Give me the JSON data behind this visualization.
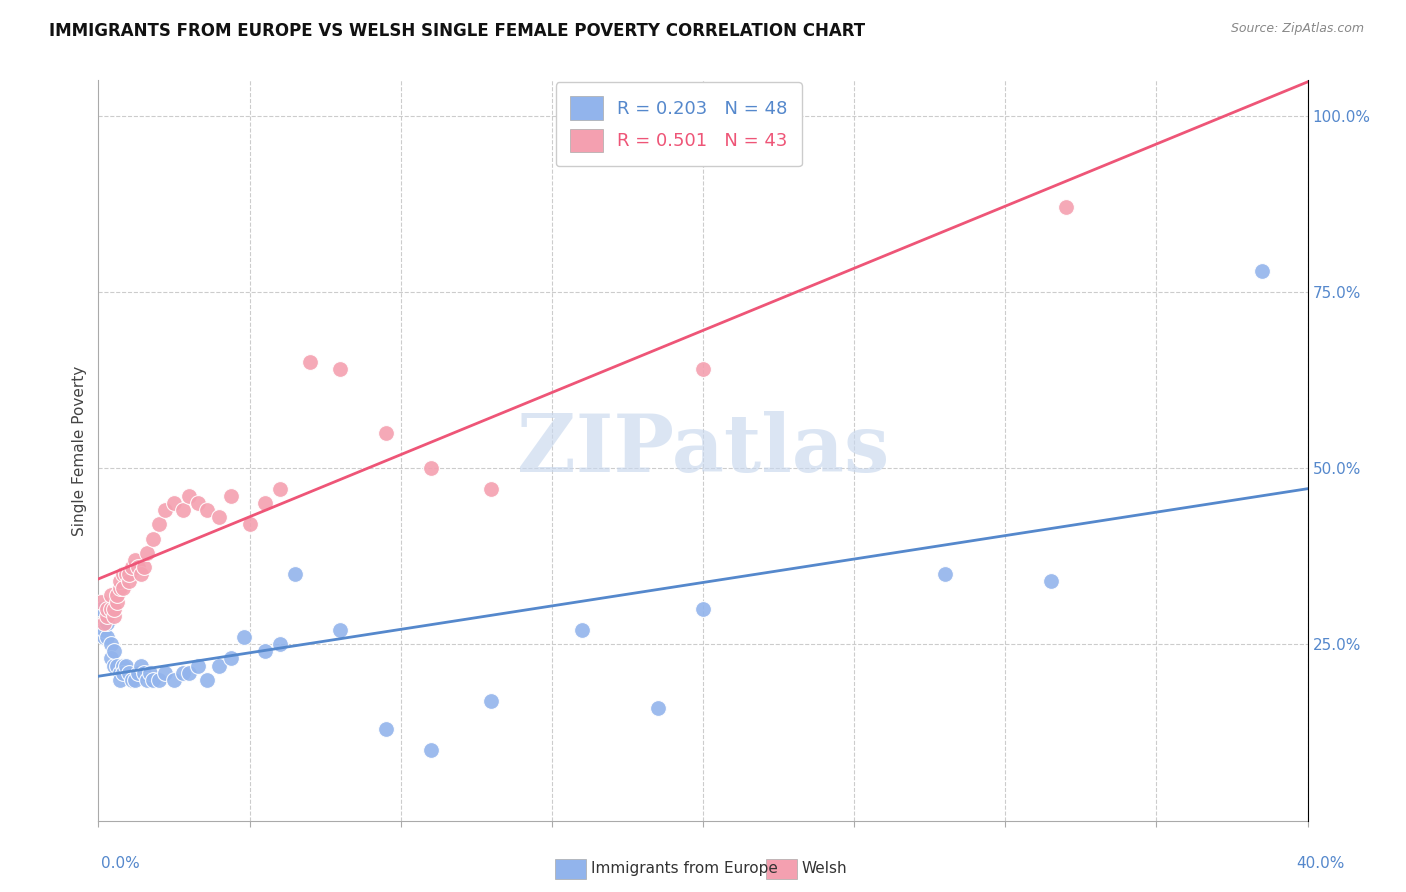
{
  "title": "IMMIGRANTS FROM EUROPE VS WELSH SINGLE FEMALE POVERTY CORRELATION CHART",
  "source": "Source: ZipAtlas.com",
  "ylabel": "Single Female Poverty",
  "legend_blue_R": 0.203,
  "legend_blue_N": 48,
  "legend_pink_R": 0.501,
  "legend_pink_N": 43,
  "watermark": "ZIPatlas",
  "blue_color": "#92B4EC",
  "pink_color": "#F4A0B0",
  "blue_line_color": "#5588CC",
  "pink_line_color": "#EE5577",
  "xlim": [
    0.0,
    0.4
  ],
  "ylim": [
    0.0,
    1.05
  ],
  "blue_x": [
    0.001,
    0.001,
    0.002,
    0.002,
    0.003,
    0.003,
    0.004,
    0.004,
    0.005,
    0.005,
    0.006,
    0.007,
    0.007,
    0.008,
    0.008,
    0.009,
    0.01,
    0.011,
    0.012,
    0.013,
    0.014,
    0.015,
    0.016,
    0.017,
    0.018,
    0.02,
    0.022,
    0.025,
    0.028,
    0.03,
    0.033,
    0.036,
    0.04,
    0.044,
    0.048,
    0.055,
    0.06,
    0.065,
    0.08,
    0.095,
    0.11,
    0.13,
    0.16,
    0.185,
    0.2,
    0.28,
    0.315,
    0.385
  ],
  "blue_y": [
    0.3,
    0.27,
    0.26,
    0.27,
    0.26,
    0.28,
    0.25,
    0.23,
    0.22,
    0.24,
    0.22,
    0.21,
    0.2,
    0.22,
    0.21,
    0.22,
    0.21,
    0.2,
    0.2,
    0.21,
    0.22,
    0.21,
    0.2,
    0.21,
    0.2,
    0.2,
    0.21,
    0.2,
    0.21,
    0.21,
    0.22,
    0.2,
    0.22,
    0.23,
    0.26,
    0.24,
    0.25,
    0.35,
    0.27,
    0.13,
    0.1,
    0.17,
    0.27,
    0.16,
    0.3,
    0.35,
    0.34,
    0.78
  ],
  "pink_x": [
    0.001,
    0.002,
    0.003,
    0.003,
    0.004,
    0.004,
    0.005,
    0.005,
    0.006,
    0.006,
    0.007,
    0.007,
    0.008,
    0.008,
    0.009,
    0.01,
    0.01,
    0.011,
    0.012,
    0.013,
    0.014,
    0.015,
    0.016,
    0.018,
    0.02,
    0.022,
    0.025,
    0.028,
    0.03,
    0.033,
    0.036,
    0.04,
    0.044,
    0.05,
    0.055,
    0.06,
    0.07,
    0.08,
    0.095,
    0.11,
    0.13,
    0.2,
    0.32
  ],
  "pink_y": [
    0.31,
    0.28,
    0.29,
    0.3,
    0.3,
    0.32,
    0.29,
    0.3,
    0.31,
    0.32,
    0.33,
    0.34,
    0.35,
    0.33,
    0.35,
    0.34,
    0.35,
    0.36,
    0.37,
    0.36,
    0.35,
    0.36,
    0.38,
    0.4,
    0.42,
    0.44,
    0.45,
    0.44,
    0.46,
    0.45,
    0.44,
    0.43,
    0.46,
    0.42,
    0.45,
    0.47,
    0.65,
    0.64,
    0.55,
    0.5,
    0.47,
    0.64,
    0.87
  ]
}
